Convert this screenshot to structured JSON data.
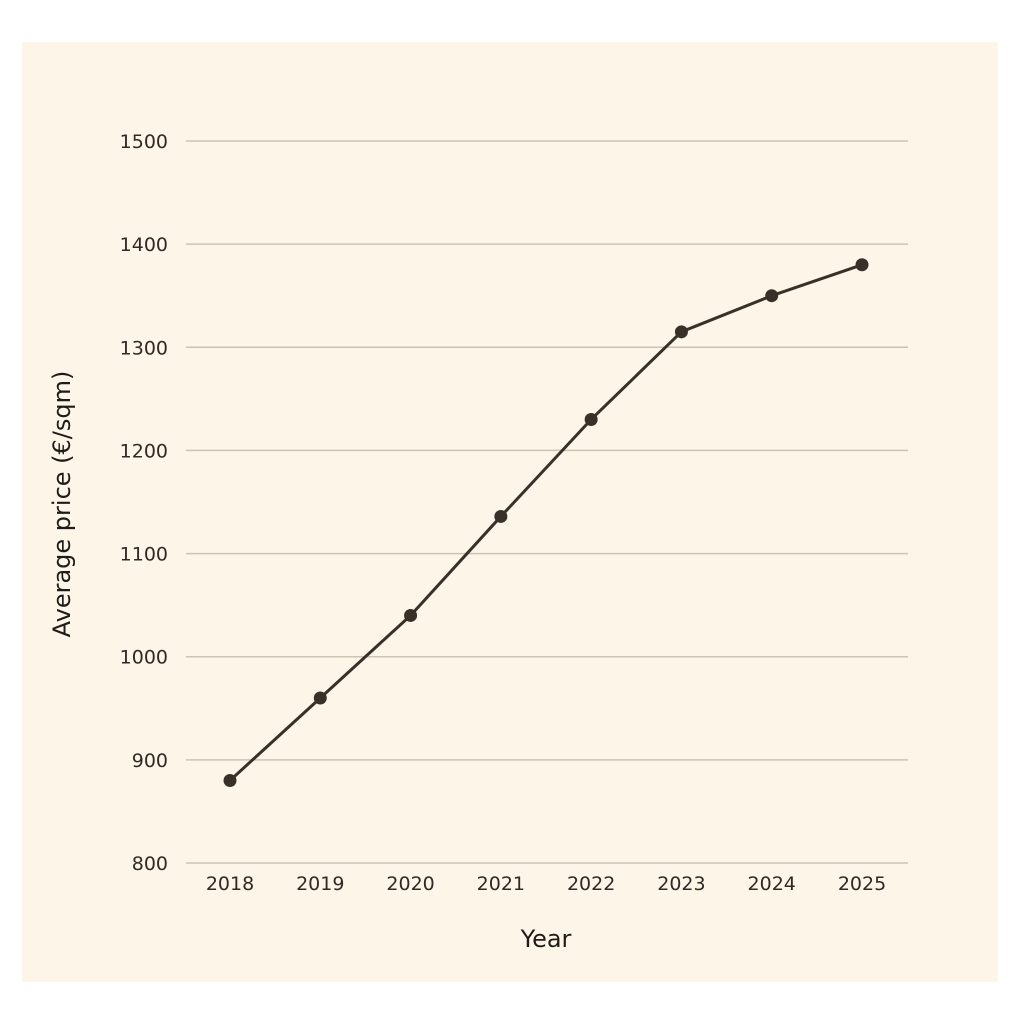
{
  "chart_data": {
    "type": "line",
    "title": "",
    "xlabel": "Year",
    "ylabel": "Average price (€/sqm)",
    "categories": [
      "2018",
      "2019",
      "2020",
      "2021",
      "2022",
      "2023",
      "2024",
      "2025"
    ],
    "series": [
      {
        "values": [
          880,
          960,
          1040,
          1136,
          1230,
          1315,
          1350,
          1380
        ]
      }
    ],
    "ylim": [
      800,
      1500
    ],
    "yticks": [
      800,
      900,
      1000,
      1100,
      1200,
      1300,
      1400,
      1500
    ],
    "grid": true,
    "legend": "none"
  },
  "colors": {
    "panel_background": "#fdf5e7",
    "series": "#3a302a",
    "grid": "#cfc3b4",
    "text": "#2f2a26"
  }
}
